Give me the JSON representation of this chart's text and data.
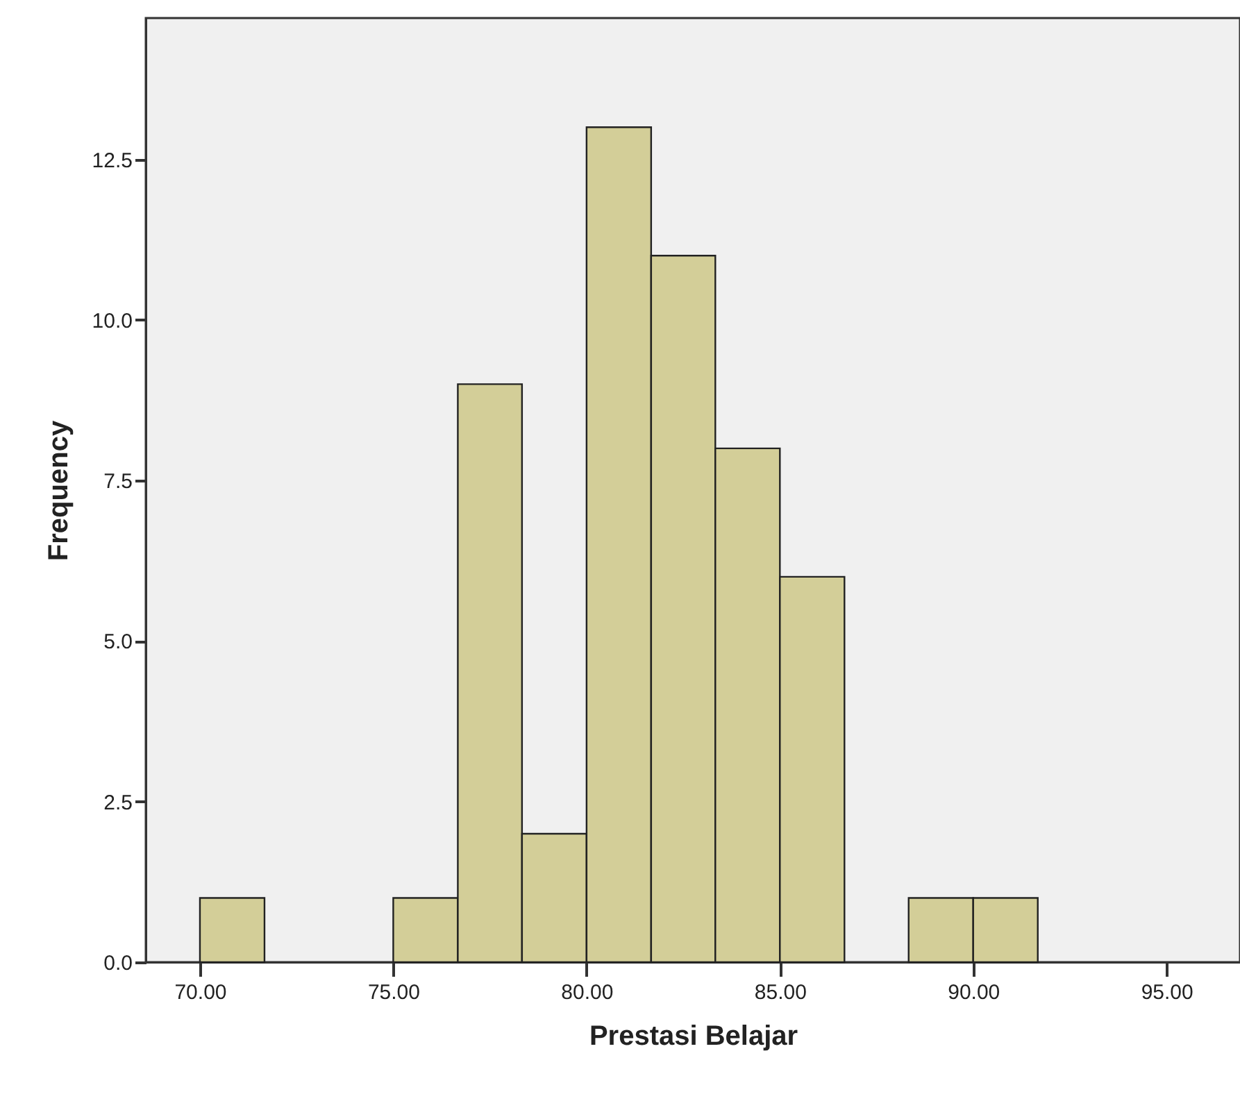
{
  "chart_data": {
    "type": "histogram",
    "xlabel": "Prestasi Belajar",
    "ylabel": "Frequency",
    "bins": [
      70,
      71.67,
      75,
      76.67,
      78.33,
      80,
      81.67,
      83.33,
      85,
      86.67,
      88.33,
      90,
      91.67
    ],
    "values": [
      1,
      0,
      1,
      9,
      2,
      13,
      11,
      8,
      6,
      0,
      1,
      1
    ],
    "color": "#d3ce98",
    "xlim": [
      68.6,
      96.9
    ],
    "ylim": [
      0,
      14.7
    ],
    "xticks": [
      {
        "value": 70,
        "label": "70.00"
      },
      {
        "value": 75,
        "label": "75.00"
      },
      {
        "value": 80,
        "label": "80.00"
      },
      {
        "value": 85,
        "label": "85.00"
      },
      {
        "value": 90,
        "label": "90.00"
      },
      {
        "value": 95,
        "label": "95.00"
      }
    ],
    "yticks": [
      {
        "value": 0,
        "label": "0.0"
      },
      {
        "value": 2.5,
        "label": "2.5"
      },
      {
        "value": 5,
        "label": "5.0"
      },
      {
        "value": 7.5,
        "label": "7.5"
      },
      {
        "value": 10,
        "label": "10.0"
      },
      {
        "value": 12.5,
        "label": "12.5"
      }
    ],
    "grid": false
  }
}
